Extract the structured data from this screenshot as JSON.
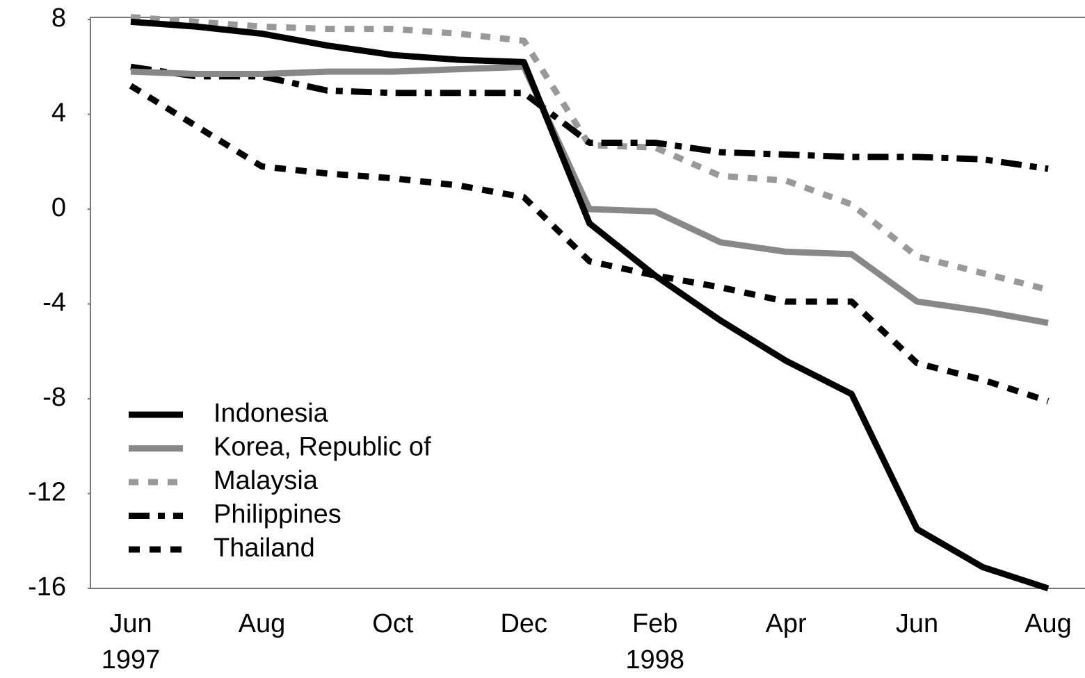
{
  "chart_data": {
    "type": "line",
    "categories": [
      "Jun 1997",
      null,
      "Aug",
      null,
      "Oct",
      null,
      "Dec",
      null,
      "Feb 1998",
      null,
      "Apr",
      null,
      "Jun",
      null,
      "Aug"
    ],
    "ylim": [
      -16,
      8
    ],
    "yticks": [
      -16,
      -12,
      -8,
      -4,
      0,
      4,
      8
    ],
    "legend": "lower left",
    "series": [
      {
        "name": "Indonesia",
        "color": "#000000",
        "dash": "solid",
        "values": [
          7.9,
          7.7,
          7.4,
          6.9,
          6.5,
          6.3,
          6.2,
          -0.6,
          -2.8,
          -4.7,
          -6.4,
          -7.8,
          -13.5,
          -15.1,
          -16.0
        ]
      },
      {
        "name": "Korea, Republic of",
        "color": "#888888",
        "dash": "solid",
        "values": [
          5.8,
          5.7,
          5.7,
          5.8,
          5.8,
          5.9,
          6.0,
          0.0,
          -0.1,
          -1.4,
          -1.8,
          -1.9,
          -3.9,
          -4.3,
          -4.8
        ]
      },
      {
        "name": "Malaysia",
        "color": "#999999",
        "dash": "dot",
        "values": [
          8.1,
          7.9,
          7.7,
          7.6,
          7.6,
          7.4,
          7.1,
          2.7,
          2.6,
          1.4,
          1.2,
          0.2,
          -2.0,
          -2.7,
          -3.4
        ]
      },
      {
        "name": "Philippines",
        "color": "#000000",
        "dash": "dashdot",
        "values": [
          6.0,
          5.6,
          5.6,
          5.0,
          4.9,
          4.9,
          4.9,
          2.8,
          2.8,
          2.4,
          2.3,
          2.2,
          2.2,
          2.1,
          1.7
        ]
      },
      {
        "name": "Thailand",
        "color": "#000000",
        "dash": "dash",
        "values": [
          5.2,
          3.5,
          1.8,
          1.5,
          1.3,
          1.0,
          0.5,
          -2.2,
          -2.8,
          -3.3,
          -3.9,
          -3.9,
          -6.5,
          -7.2,
          -8.1
        ]
      }
    ]
  }
}
